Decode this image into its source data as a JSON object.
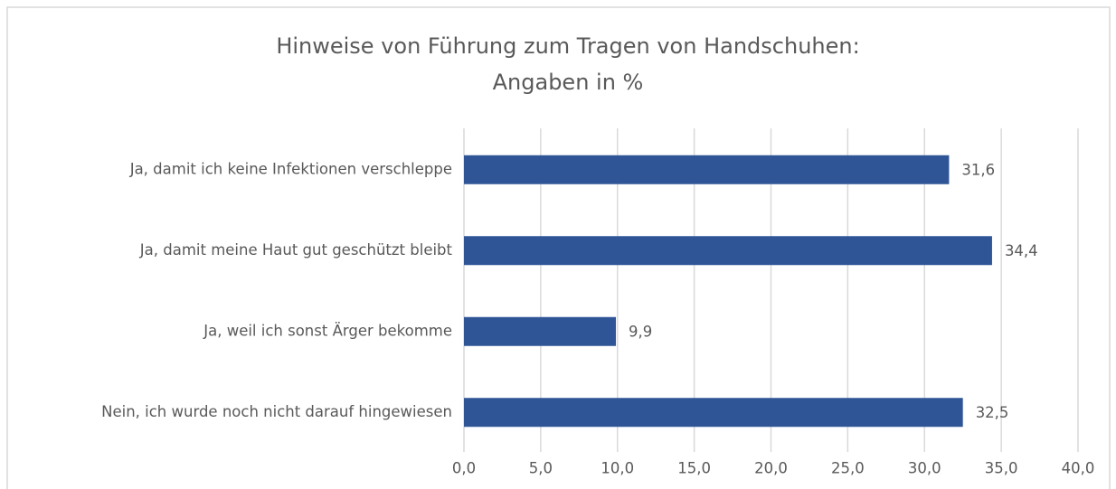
{
  "chart_data": {
    "type": "barh",
    "title": "Hinweise von Führung zum Tragen von Handschuhen:",
    "subtitle": "Angaben in %",
    "categories": [
      "Ja, damit ich keine Infektionen verschleppe",
      "Ja, damit meine Haut gut geschützt bleibt",
      "Ja, weil ich sonst Ärger bekomme",
      "Nein, ich wurde noch nicht darauf hingewiesen"
    ],
    "values": [
      31.6,
      34.4,
      9.9,
      32.5
    ],
    "value_labels": [
      "31,6",
      "34,4",
      "9,9",
      "32,5"
    ],
    "color": "#2f5597",
    "xlim": [
      0,
      40
    ],
    "xticks": [
      {
        "value": 0,
        "label": "0,0"
      },
      {
        "value": 5,
        "label": "5,0"
      },
      {
        "value": 10,
        "label": "10,0"
      },
      {
        "value": 15,
        "label": "15,0"
      },
      {
        "value": 20,
        "label": "20,0"
      },
      {
        "value": 25,
        "label": "25,0"
      },
      {
        "value": 30,
        "label": "30,0"
      },
      {
        "value": 35,
        "label": "35,0"
      },
      {
        "value": 40,
        "label": "40,0"
      }
    ],
    "grid": true
  }
}
